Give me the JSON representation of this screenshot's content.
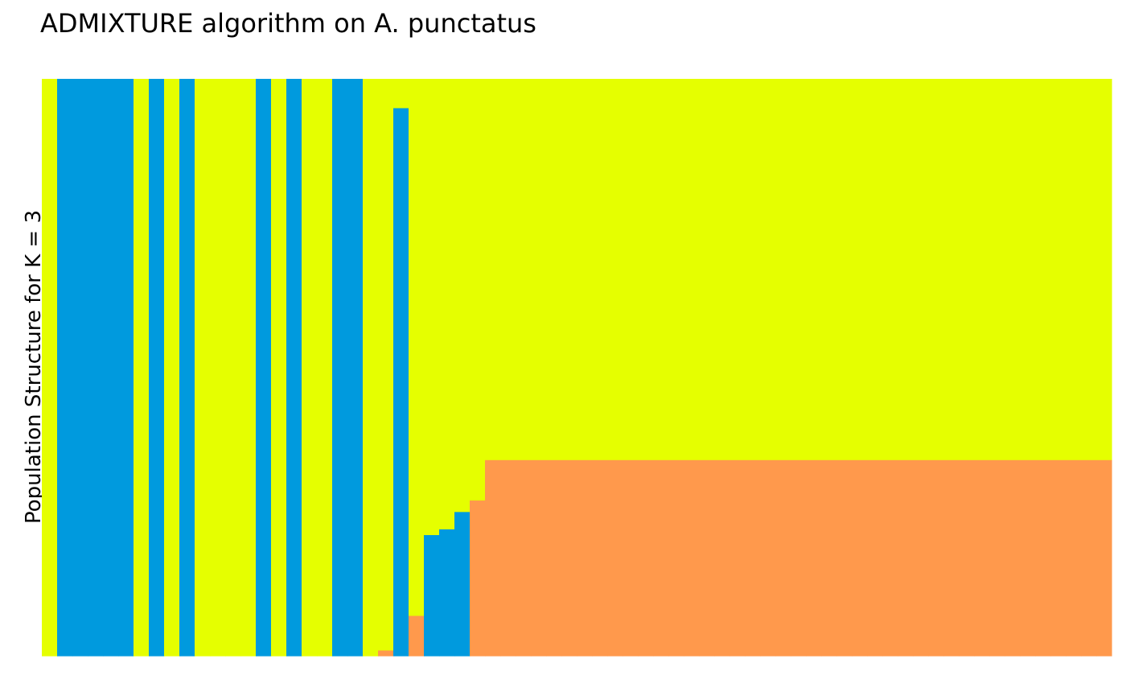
{
  "chart_data": {
    "type": "bar",
    "stacked": true,
    "title": "ADMIXTURE algorithm on A. punctatus",
    "xlabel": "",
    "ylabel": "Population Structure for K = 3",
    "ylim": [
      0,
      1
    ],
    "grid": false,
    "legend": "none",
    "colors": {
      "orange": "#FF994C",
      "blue": "#009ADE",
      "yellow": "#E5FF00"
    },
    "series": [
      {
        "color": "#FF994C",
        "values": [
          0,
          0,
          0,
          0,
          0,
          0,
          0,
          0,
          0,
          0,
          0,
          0,
          0,
          0,
          0,
          0,
          0,
          0,
          0,
          0,
          0,
          0,
          0.01,
          0,
          0.07,
          0,
          0,
          0,
          0.27,
          0.34,
          0.34,
          0.34,
          0.34,
          0.34,
          0.34,
          0.34,
          0.34,
          0.34,
          0.34,
          0.34,
          0.34,
          0.34,
          0.34,
          0.34,
          0.34,
          0.34,
          0.34,
          0.34,
          0.34,
          0.34,
          0.34,
          0.34,
          0.34,
          0.34,
          0.34,
          0.34,
          0.34,
          0.34,
          0.34,
          0.34,
          0.34,
          0.34,
          0.34,
          0.34,
          0.34,
          0.34,
          0.34,
          0.34,
          0.34,
          0.34
        ]
      },
      {
        "color": "#009ADE",
        "values": [
          0,
          1,
          1,
          1,
          1,
          1,
          0,
          1,
          0,
          1,
          0,
          0,
          0,
          0,
          1,
          0,
          1,
          0,
          0,
          1,
          1,
          0,
          0,
          0.95,
          0,
          0.21,
          0.22,
          0.25,
          0,
          0,
          0,
          0,
          0,
          0,
          0,
          0,
          0,
          0,
          0,
          0,
          0,
          0,
          0,
          0,
          0,
          0,
          0,
          0,
          0,
          0,
          0,
          0,
          0,
          0,
          0,
          0,
          0,
          0,
          0,
          0,
          0,
          0,
          0,
          0,
          0,
          0,
          0,
          0,
          0,
          0
        ]
      },
      {
        "color": "#E5FF00",
        "values": [
          1,
          0,
          0,
          0,
          0,
          0,
          1,
          0,
          1,
          0,
          1,
          1,
          1,
          1,
          0,
          1,
          0,
          1,
          1,
          0,
          0,
          1,
          0.99,
          0.05,
          0.93,
          0.79,
          0.78,
          0.75,
          0.73,
          0.66,
          0.66,
          0.66,
          0.66,
          0.66,
          0.66,
          0.66,
          0.66,
          0.66,
          0.66,
          0.66,
          0.66,
          0.66,
          0.66,
          0.66,
          0.66,
          0.66,
          0.66,
          0.66,
          0.66,
          0.66,
          0.66,
          0.66,
          0.66,
          0.66,
          0.66,
          0.66,
          0.66,
          0.66,
          0.66,
          0.66,
          0.66,
          0.66,
          0.66,
          0.66,
          0.66,
          0.66,
          0.66,
          0.66,
          0.66,
          0.66
        ]
      }
    ]
  }
}
